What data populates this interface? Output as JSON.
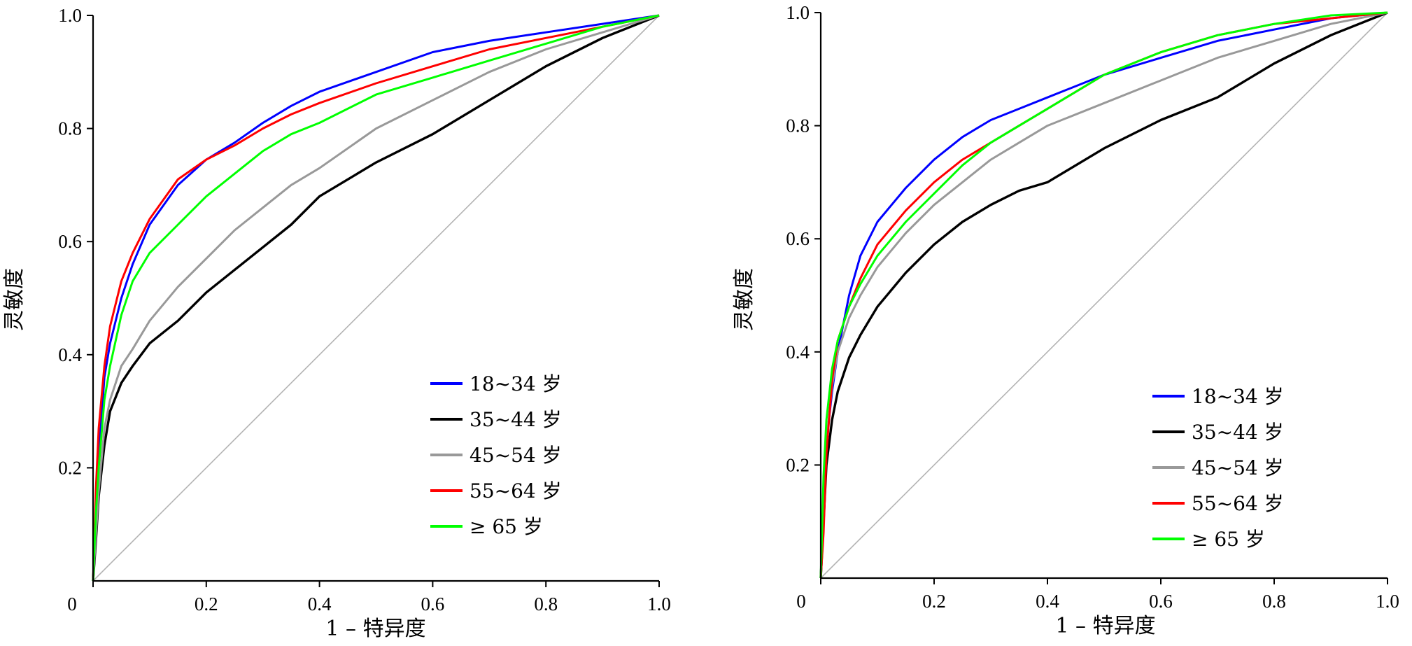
{
  "chart_data": [
    {
      "type": "line",
      "xlabel": "1 – 特异度",
      "ylabel": "灵敏度",
      "xlim": [
        0,
        1.0
      ],
      "ylim": [
        0,
        1.0
      ],
      "x_ticks": [
        "0",
        "0.2",
        "0.4",
        "0.6",
        "0.8",
        "1.0"
      ],
      "y_ticks": [
        "0.2",
        "0.4",
        "0.6",
        "0.8",
        "1.0"
      ],
      "legend_position": "bottom-right",
      "reference_line": {
        "x": [
          0,
          1
        ],
        "y": [
          0,
          1
        ],
        "color": "#b3b3b3"
      },
      "series": [
        {
          "name": "18~34 岁",
          "color": "#0000ff",
          "x": [
            0,
            0.005,
            0.01,
            0.02,
            0.03,
            0.05,
            0.07,
            0.1,
            0.15,
            0.2,
            0.25,
            0.3,
            0.35,
            0.4,
            0.5,
            0.6,
            0.7,
            0.8,
            0.9,
            1.0
          ],
          "y": [
            0,
            0.12,
            0.22,
            0.36,
            0.42,
            0.5,
            0.56,
            0.63,
            0.7,
            0.745,
            0.775,
            0.81,
            0.84,
            0.865,
            0.9,
            0.935,
            0.955,
            0.97,
            0.985,
            1.0
          ]
        },
        {
          "name": "35~44 岁",
          "color": "#000000",
          "x": [
            0,
            0.005,
            0.01,
            0.02,
            0.03,
            0.05,
            0.07,
            0.1,
            0.15,
            0.2,
            0.25,
            0.3,
            0.35,
            0.4,
            0.5,
            0.6,
            0.7,
            0.8,
            0.9,
            1.0
          ],
          "y": [
            0,
            0.07,
            0.15,
            0.24,
            0.3,
            0.35,
            0.38,
            0.42,
            0.46,
            0.51,
            0.55,
            0.59,
            0.63,
            0.68,
            0.74,
            0.79,
            0.85,
            0.91,
            0.96,
            1.0
          ]
        },
        {
          "name": "45~54 岁",
          "color": "#999999",
          "x": [
            0,
            0.005,
            0.01,
            0.02,
            0.03,
            0.05,
            0.07,
            0.1,
            0.15,
            0.2,
            0.25,
            0.3,
            0.35,
            0.4,
            0.5,
            0.6,
            0.7,
            0.8,
            0.9,
            1.0
          ],
          "y": [
            0,
            0.08,
            0.16,
            0.27,
            0.32,
            0.38,
            0.41,
            0.46,
            0.52,
            0.57,
            0.62,
            0.66,
            0.7,
            0.73,
            0.8,
            0.85,
            0.9,
            0.94,
            0.97,
            1.0
          ]
        },
        {
          "name": "55~64 岁",
          "color": "#ff0000",
          "x": [
            0,
            0.005,
            0.01,
            0.02,
            0.03,
            0.05,
            0.07,
            0.1,
            0.15,
            0.2,
            0.25,
            0.3,
            0.35,
            0.4,
            0.5,
            0.6,
            0.7,
            0.8,
            0.9,
            1.0
          ],
          "y": [
            0,
            0.16,
            0.27,
            0.38,
            0.45,
            0.53,
            0.58,
            0.64,
            0.71,
            0.745,
            0.77,
            0.8,
            0.825,
            0.845,
            0.88,
            0.91,
            0.94,
            0.96,
            0.98,
            1.0
          ]
        },
        {
          "name": "≥ 65 岁",
          "color": "#00ff00",
          "x": [
            0,
            0.005,
            0.01,
            0.02,
            0.03,
            0.05,
            0.07,
            0.1,
            0.15,
            0.2,
            0.25,
            0.3,
            0.35,
            0.4,
            0.5,
            0.6,
            0.7,
            0.8,
            0.9,
            1.0
          ],
          "y": [
            0,
            0.12,
            0.2,
            0.32,
            0.38,
            0.47,
            0.53,
            0.58,
            0.63,
            0.68,
            0.72,
            0.76,
            0.79,
            0.81,
            0.86,
            0.89,
            0.92,
            0.95,
            0.98,
            1.0
          ]
        }
      ]
    },
    {
      "type": "line",
      "xlabel": "1 – 特异度",
      "ylabel": "灵敏度",
      "xlim": [
        0,
        1.0
      ],
      "ylim": [
        0,
        1.0
      ],
      "x_ticks": [
        "0",
        "0.2",
        "0.4",
        "0.6",
        "0.8",
        "1.0"
      ],
      "y_ticks": [
        "0.2",
        "0.4",
        "0.6",
        "0.8",
        "1.0"
      ],
      "legend_position": "bottom-right",
      "reference_line": {
        "x": [
          0,
          1
        ],
        "y": [
          0,
          1
        ],
        "color": "#b3b3b3"
      },
      "series": [
        {
          "name": "18~34 岁",
          "color": "#0000ff",
          "x": [
            0,
            0.005,
            0.01,
            0.02,
            0.03,
            0.05,
            0.07,
            0.1,
            0.15,
            0.2,
            0.25,
            0.3,
            0.35,
            0.4,
            0.5,
            0.6,
            0.7,
            0.8,
            0.9,
            1.0
          ],
          "y": [
            0,
            0.12,
            0.24,
            0.33,
            0.4,
            0.5,
            0.57,
            0.63,
            0.69,
            0.74,
            0.78,
            0.81,
            0.83,
            0.85,
            0.89,
            0.92,
            0.95,
            0.97,
            0.99,
            1.0
          ]
        },
        {
          "name": "35~44 岁",
          "color": "#000000",
          "x": [
            0,
            0.005,
            0.01,
            0.02,
            0.03,
            0.05,
            0.07,
            0.1,
            0.15,
            0.2,
            0.25,
            0.3,
            0.35,
            0.4,
            0.5,
            0.6,
            0.7,
            0.8,
            0.9,
            1.0
          ],
          "y": [
            0,
            0.1,
            0.2,
            0.28,
            0.33,
            0.39,
            0.43,
            0.48,
            0.54,
            0.59,
            0.63,
            0.66,
            0.685,
            0.7,
            0.76,
            0.81,
            0.85,
            0.91,
            0.96,
            1.0
          ]
        },
        {
          "name": "45~54 岁",
          "color": "#999999",
          "x": [
            0,
            0.005,
            0.01,
            0.02,
            0.03,
            0.05,
            0.07,
            0.1,
            0.15,
            0.2,
            0.25,
            0.3,
            0.35,
            0.4,
            0.5,
            0.6,
            0.7,
            0.8,
            0.9,
            1.0
          ],
          "y": [
            0,
            0.14,
            0.24,
            0.34,
            0.4,
            0.46,
            0.5,
            0.55,
            0.61,
            0.66,
            0.7,
            0.74,
            0.77,
            0.8,
            0.84,
            0.88,
            0.92,
            0.95,
            0.98,
            1.0
          ]
        },
        {
          "name": "55~64 岁",
          "color": "#ff0000",
          "x": [
            0,
            0.005,
            0.01,
            0.02,
            0.03,
            0.05,
            0.07,
            0.1,
            0.15,
            0.2,
            0.25,
            0.3,
            0.35,
            0.4,
            0.5,
            0.6,
            0.7,
            0.8,
            0.9,
            1.0
          ],
          "y": [
            0,
            0.08,
            0.22,
            0.35,
            0.42,
            0.48,
            0.53,
            0.59,
            0.65,
            0.7,
            0.74,
            0.77,
            0.8,
            0.83,
            0.89,
            0.93,
            0.96,
            0.98,
            0.99,
            1.0
          ]
        },
        {
          "name": "≥ 65 岁",
          "color": "#00ff00",
          "x": [
            0,
            0.005,
            0.01,
            0.02,
            0.03,
            0.05,
            0.07,
            0.1,
            0.15,
            0.2,
            0.25,
            0.3,
            0.35,
            0.4,
            0.5,
            0.6,
            0.7,
            0.8,
            0.9,
            1.0
          ],
          "y": [
            0,
            0.18,
            0.28,
            0.37,
            0.42,
            0.48,
            0.52,
            0.57,
            0.63,
            0.68,
            0.73,
            0.77,
            0.8,
            0.83,
            0.89,
            0.93,
            0.96,
            0.98,
            0.995,
            1.0
          ]
        }
      ]
    }
  ]
}
